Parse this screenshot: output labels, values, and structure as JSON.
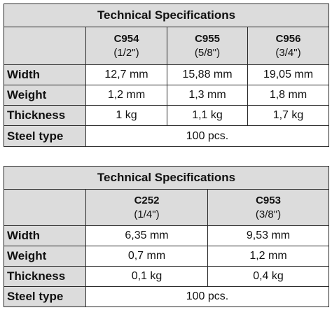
{
  "tables": [
    {
      "title": "Technical Specifications",
      "columns": [
        {
          "code": "C954",
          "size": "(1/2\")"
        },
        {
          "code": "C955",
          "size": "(5/8\")"
        },
        {
          "code": "C956",
          "size": "(3/4\")"
        }
      ],
      "rows": [
        {
          "label": "Width",
          "values": [
            "12,7 mm",
            "15,88 mm",
            "19,05 mm"
          ]
        },
        {
          "label": "Weight",
          "values": [
            "1,2 mm",
            "1,3 mm",
            "1,8 mm"
          ]
        },
        {
          "label": "Thickness",
          "values": [
            "1 kg",
            "1,1 kg",
            "1,7 kg"
          ]
        }
      ],
      "steel": {
        "label": "Steel type",
        "value": "100 pcs."
      }
    },
    {
      "title": "Technical Specifications",
      "columns": [
        {
          "code": "C252",
          "size": "(1/4\")"
        },
        {
          "code": "C953",
          "size": "(3/8\")"
        }
      ],
      "rows": [
        {
          "label": "Width",
          "values": [
            "6,35 mm",
            "9,53 mm"
          ]
        },
        {
          "label": "Weight",
          "values": [
            "0,7 mm",
            "1,2 mm"
          ]
        },
        {
          "label": "Thickness",
          "values": [
            "0,1 kg",
            "0,4 kg"
          ]
        }
      ],
      "steel": {
        "label": "Steel type",
        "value": "100 pcs."
      }
    }
  ]
}
